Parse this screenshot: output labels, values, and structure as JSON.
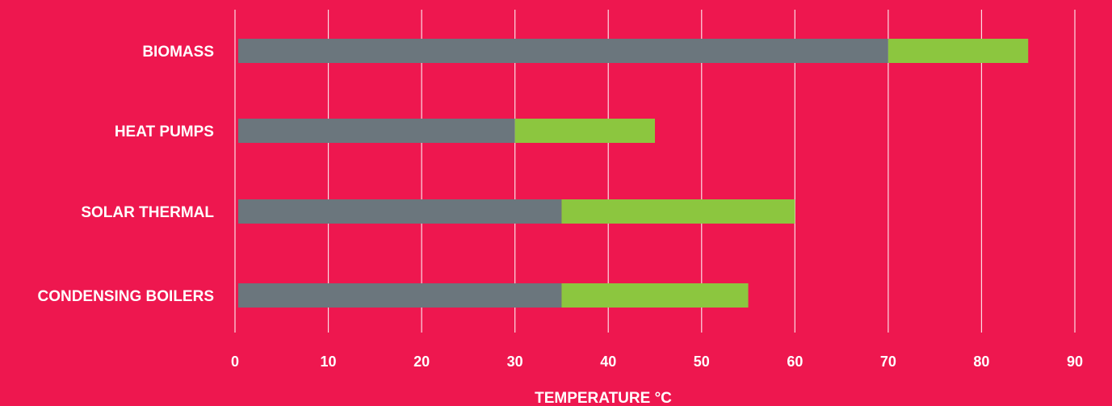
{
  "chart_data": {
    "type": "bar",
    "orientation": "horizontal",
    "stacked": true,
    "categories": [
      "BIOMASS",
      "HEAT PUMPS",
      "SOLAR THERMAL",
      "CONDENSING BOILERS"
    ],
    "series": [
      {
        "values": [
          70,
          30,
          35,
          35
        ],
        "color": "#6b767d"
      },
      {
        "values": [
          15,
          15,
          25,
          20
        ],
        "color": "#8cc63f"
      }
    ],
    "xlabel": "TEMPERATURE °C",
    "xlim": [
      0,
      90
    ],
    "xticks": [
      "0",
      "10",
      "20",
      "30",
      "40",
      "50",
      "60",
      "70",
      "80",
      "90"
    ],
    "grid": true,
    "colors": {
      "background": "#ee174f",
      "gridline": "#ffffff",
      "text": "#ffffff"
    }
  }
}
